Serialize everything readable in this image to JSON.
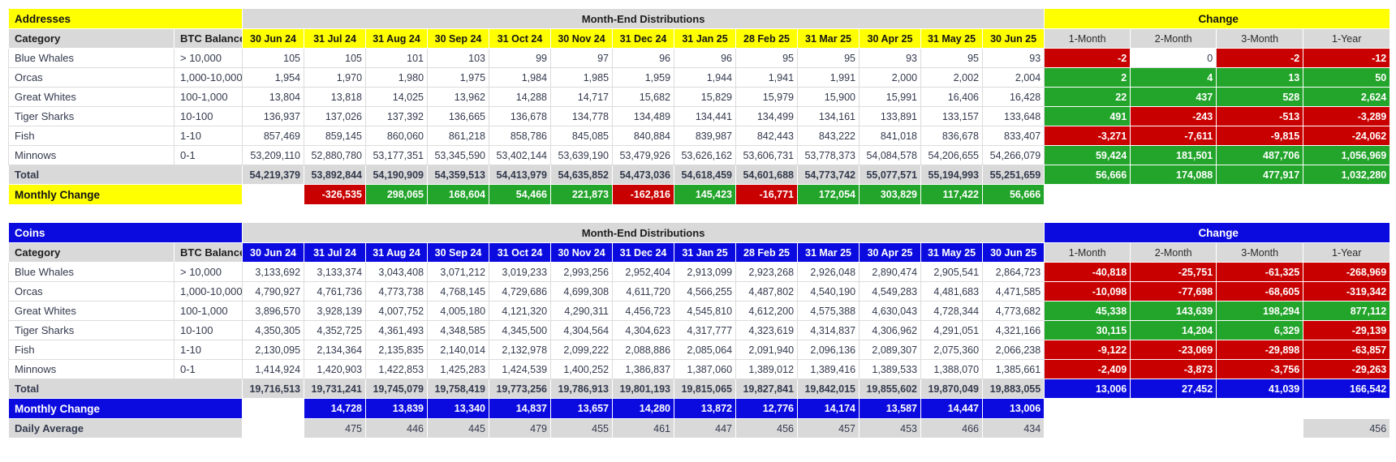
{
  "page": {
    "background": "#FFFFFF"
  },
  "colors": {
    "yellow": "#FFFF00",
    "blue": "#0B0BDF",
    "red": "#C90000",
    "green": "#23A42B",
    "header_gray": "#D9D9D9",
    "text": "#333A4D"
  },
  "months": [
    "30 Jun 24",
    "31 Jul 24",
    "31 Aug 24",
    "30 Sep 24",
    "31 Oct 24",
    "30 Nov 24",
    "31 Dec 24",
    "31 Jan 25",
    "28 Feb 25",
    "31 Mar 25",
    "30 Apr 25",
    "31 May 25",
    "30 Jun 25"
  ],
  "periods": [
    "1-Month",
    "2-Month",
    "3-Month",
    "1-Year"
  ],
  "tables": [
    {
      "id": "addresses",
      "title": "Addresses",
      "theme": "yellow",
      "banner": "Month-End Distributions",
      "change_title": "Change",
      "category_header": "Category",
      "btc_header": "BTC Balance",
      "rows": [
        {
          "label": "Blue Whales",
          "btc": "> 10,000",
          "values": [
            "105",
            "105",
            "101",
            "103",
            "99",
            "97",
            "96",
            "96",
            "95",
            "95",
            "93",
            "95",
            "93"
          ],
          "chg": [
            "-2",
            "0",
            "-2",
            "-12"
          ],
          "chgc": [
            "r",
            "n",
            "r",
            "r"
          ]
        },
        {
          "label": "Orcas",
          "btc": "1,000-10,000",
          "values": [
            "1,954",
            "1,970",
            "1,980",
            "1,975",
            "1,984",
            "1,985",
            "1,959",
            "1,944",
            "1,941",
            "1,991",
            "2,000",
            "2,002",
            "2,004"
          ],
          "chg": [
            "2",
            "4",
            "13",
            "50"
          ],
          "chgc": [
            "g",
            "g",
            "g",
            "g"
          ]
        },
        {
          "label": "Great Whites",
          "btc": "100-1,000",
          "values": [
            "13,804",
            "13,818",
            "14,025",
            "13,962",
            "14,288",
            "14,717",
            "15,682",
            "15,829",
            "15,979",
            "15,900",
            "15,991",
            "16,406",
            "16,428"
          ],
          "chg": [
            "22",
            "437",
            "528",
            "2,624"
          ],
          "chgc": [
            "g",
            "g",
            "g",
            "g"
          ]
        },
        {
          "label": "Tiger Sharks",
          "btc": "10-100",
          "values": [
            "136,937",
            "137,026",
            "137,392",
            "136,665",
            "136,678",
            "134,778",
            "134,489",
            "134,441",
            "134,499",
            "134,161",
            "133,891",
            "133,157",
            "133,648"
          ],
          "chg": [
            "491",
            "-243",
            "-513",
            "-3,289"
          ],
          "chgc": [
            "g",
            "r",
            "r",
            "r"
          ]
        },
        {
          "label": "Fish",
          "btc": "1-10",
          "values": [
            "857,469",
            "859,145",
            "860,060",
            "861,218",
            "858,786",
            "845,085",
            "840,884",
            "839,987",
            "842,443",
            "843,222",
            "841,018",
            "836,678",
            "833,407"
          ],
          "chg": [
            "-3,271",
            "-7,611",
            "-9,815",
            "-24,062"
          ],
          "chgc": [
            "r",
            "r",
            "r",
            "r"
          ]
        },
        {
          "label": "Minnows",
          "btc": "0-1",
          "values": [
            "53,209,110",
            "52,880,780",
            "53,177,351",
            "53,345,590",
            "53,402,144",
            "53,639,190",
            "53,479,926",
            "53,626,162",
            "53,606,731",
            "53,778,373",
            "54,084,578",
            "54,206,655",
            "54,266,079"
          ],
          "chg": [
            "59,424",
            "181,501",
            "487,706",
            "1,056,969"
          ],
          "chgc": [
            "g",
            "g",
            "g",
            "g"
          ]
        }
      ],
      "total": {
        "label": "Total",
        "values": [
          "54,219,379",
          "53,892,844",
          "54,190,909",
          "54,359,513",
          "54,413,979",
          "54,635,852",
          "54,473,036",
          "54,618,459",
          "54,601,688",
          "54,773,742",
          "55,077,571",
          "55,194,993",
          "55,251,659"
        ],
        "chg": [
          "56,666",
          "174,088",
          "477,917",
          "1,032,280"
        ],
        "chgc": [
          "g",
          "g",
          "g",
          "g"
        ]
      },
      "monthly_change": {
        "label": "Monthly Change",
        "values": [
          "-326,535",
          "298,065",
          "168,604",
          "54,466",
          "221,873",
          "-162,816",
          "145,423",
          "-16,771",
          "172,054",
          "303,829",
          "117,422",
          "56,666"
        ],
        "colors": [
          "r",
          "g",
          "g",
          "g",
          "g",
          "r",
          "g",
          "r",
          "g",
          "g",
          "g",
          "g"
        ]
      },
      "daily_average": null
    },
    {
      "id": "coins",
      "title": "Coins",
      "theme": "blue",
      "banner": "Month-End Distributions",
      "change_title": "Change",
      "category_header": "Category",
      "btc_header": "BTC Balance",
      "rows": [
        {
          "label": "Blue Whales",
          "btc": "> 10,000",
          "values": [
            "3,133,692",
            "3,133,374",
            "3,043,408",
            "3,071,212",
            "3,019,233",
            "2,993,256",
            "2,952,404",
            "2,913,099",
            "2,923,268",
            "2,926,048",
            "2,890,474",
            "2,905,541",
            "2,864,723"
          ],
          "chg": [
            "-40,818",
            "-25,751",
            "-61,325",
            "-268,969"
          ],
          "chgc": [
            "r",
            "r",
            "r",
            "r"
          ]
        },
        {
          "label": "Orcas",
          "btc": "1,000-10,000",
          "values": [
            "4,790,927",
            "4,761,736",
            "4,773,738",
            "4,768,145",
            "4,729,686",
            "4,699,308",
            "4,611,720",
            "4,566,255",
            "4,487,802",
            "4,540,190",
            "4,549,283",
            "4,481,683",
            "4,471,585"
          ],
          "chg": [
            "-10,098",
            "-77,698",
            "-68,605",
            "-319,342"
          ],
          "chgc": [
            "r",
            "r",
            "r",
            "r"
          ]
        },
        {
          "label": "Great Whites",
          "btc": "100-1,000",
          "values": [
            "3,896,570",
            "3,928,139",
            "4,007,752",
            "4,005,180",
            "4,121,320",
            "4,290,311",
            "4,456,723",
            "4,545,810",
            "4,612,200",
            "4,575,388",
            "4,630,043",
            "4,728,344",
            "4,773,682"
          ],
          "chg": [
            "45,338",
            "143,639",
            "198,294",
            "877,112"
          ],
          "chgc": [
            "g",
            "g",
            "g",
            "g"
          ]
        },
        {
          "label": "Tiger Sharks",
          "btc": "10-100",
          "values": [
            "4,350,305",
            "4,352,725",
            "4,361,493",
            "4,348,585",
            "4,345,500",
            "4,304,564",
            "4,304,623",
            "4,317,777",
            "4,323,619",
            "4,314,837",
            "4,306,962",
            "4,291,051",
            "4,321,166"
          ],
          "chg": [
            "30,115",
            "14,204",
            "6,329",
            "-29,139"
          ],
          "chgc": [
            "g",
            "g",
            "g",
            "r"
          ]
        },
        {
          "label": "Fish",
          "btc": "1-10",
          "values": [
            "2,130,095",
            "2,134,364",
            "2,135,835",
            "2,140,014",
            "2,132,978",
            "2,099,222",
            "2,088,886",
            "2,085,064",
            "2,091,940",
            "2,096,136",
            "2,089,307",
            "2,075,360",
            "2,066,238"
          ],
          "chg": [
            "-9,122",
            "-23,069",
            "-29,898",
            "-63,857"
          ],
          "chgc": [
            "r",
            "r",
            "r",
            "r"
          ]
        },
        {
          "label": "Minnows",
          "btc": "0-1",
          "values": [
            "1,414,924",
            "1,420,903",
            "1,422,853",
            "1,425,283",
            "1,424,539",
            "1,400,252",
            "1,386,837",
            "1,387,060",
            "1,389,012",
            "1,389,416",
            "1,389,533",
            "1,388,070",
            "1,385,661"
          ],
          "chg": [
            "-2,409",
            "-3,873",
            "-3,756",
            "-29,263"
          ],
          "chgc": [
            "r",
            "r",
            "r",
            "r"
          ]
        }
      ],
      "total": {
        "label": "Total",
        "values": [
          "19,716,513",
          "19,731,241",
          "19,745,079",
          "19,758,419",
          "19,773,256",
          "19,786,913",
          "19,801,193",
          "19,815,065",
          "19,827,841",
          "19,842,015",
          "19,855,602",
          "19,870,049",
          "19,883,055"
        ],
        "chg": [
          "13,006",
          "27,452",
          "41,039",
          "166,542"
        ],
        "chgc": [
          "b",
          "b",
          "b",
          "b"
        ]
      },
      "monthly_change": {
        "label": "Monthly Change",
        "values": [
          "14,728",
          "13,839",
          "13,340",
          "14,837",
          "13,657",
          "14,280",
          "13,872",
          "12,776",
          "14,174",
          "13,587",
          "14,447",
          "13,006"
        ],
        "colors": [
          "b",
          "b",
          "b",
          "b",
          "b",
          "b",
          "b",
          "b",
          "b",
          "b",
          "b",
          "b"
        ]
      },
      "daily_average": {
        "label": "Daily Average",
        "values": [
          "475",
          "446",
          "445",
          "479",
          "455",
          "461",
          "447",
          "456",
          "457",
          "453",
          "466",
          "434"
        ],
        "one_year": "456"
      }
    }
  ]
}
